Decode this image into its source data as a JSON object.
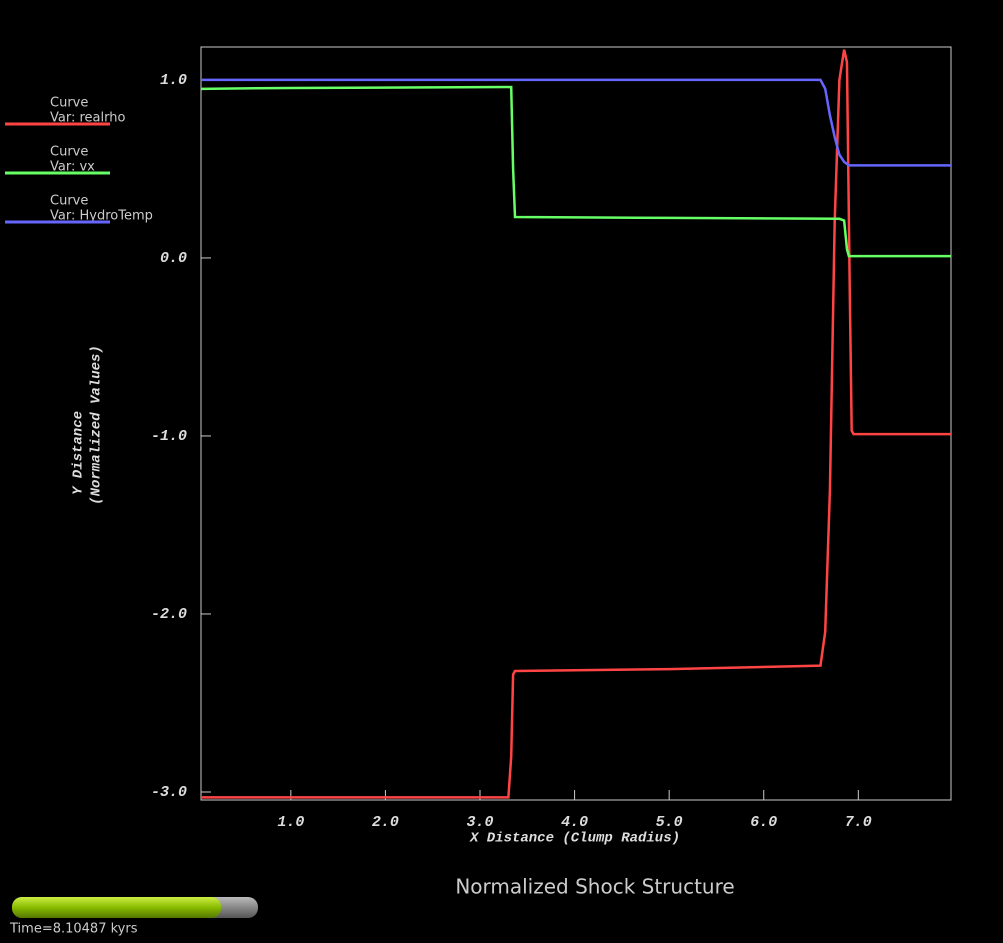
{
  "chart_data": {
    "type": "line",
    "title": "Normalized Shock Structure",
    "xlabel": "X Distance (Clump Radius)",
    "ylabel": [
      "Y Distance",
      "(Normalized Values)"
    ],
    "legend_title": "Curve",
    "time_label": "Time=8.10487 kyrs",
    "time_progress": 0.85,
    "xlim": [
      0.05,
      7.98
    ],
    "ylim": [
      -3.045,
      1.185
    ],
    "xticks": [
      {
        "value": 1,
        "label": "1.0"
      },
      {
        "value": 2,
        "label": "2.0"
      },
      {
        "value": 3,
        "label": "3.0"
      },
      {
        "value": 4,
        "label": "4.0"
      },
      {
        "value": 5,
        "label": "5.0"
      },
      {
        "value": 6,
        "label": "6.0"
      },
      {
        "value": 7,
        "label": "7.0"
      }
    ],
    "yticks": [
      {
        "value": 1,
        "label": "1.0"
      },
      {
        "value": 0,
        "label": "0.0"
      },
      {
        "value": -1,
        "label": "-1.0"
      },
      {
        "value": -2,
        "label": "-2.0"
      },
      {
        "value": -3,
        "label": "-3.0"
      }
    ],
    "series": [
      {
        "name": "Var: realrho",
        "color": "#ff4444",
        "x": [
          0.05,
          3.3,
          3.33,
          3.35,
          3.37,
          5.0,
          6.6,
          6.65,
          6.7,
          6.75,
          6.8,
          6.85,
          6.88,
          6.91,
          6.93,
          6.95,
          7.98
        ],
        "values": [
          -3.03,
          -3.03,
          -2.8,
          -2.34,
          -2.32,
          -2.31,
          -2.29,
          -2.1,
          -1.3,
          0.2,
          1.0,
          1.17,
          1.1,
          -0.2,
          -0.97,
          -0.99,
          -0.99
        ]
      },
      {
        "name": "Var: vx",
        "color": "#66ff66",
        "x": [
          0.05,
          1.0,
          3.33,
          3.35,
          3.37,
          5.0,
          6.8,
          6.85,
          6.88,
          6.9,
          7.98
        ],
        "values": [
          0.95,
          0.955,
          0.96,
          0.5,
          0.23,
          0.225,
          0.22,
          0.21,
          0.05,
          0.01,
          0.01
        ],
        "_": null
      },
      {
        "name": "Var: HydroTemp",
        "color": "#6666ff",
        "x": [
          0.05,
          6.6,
          6.65,
          6.7,
          6.75,
          6.8,
          6.85,
          6.9,
          7.98
        ],
        "values": [
          1.0,
          1.0,
          0.95,
          0.8,
          0.68,
          0.58,
          0.54,
          0.52,
          0.52
        ]
      }
    ]
  }
}
